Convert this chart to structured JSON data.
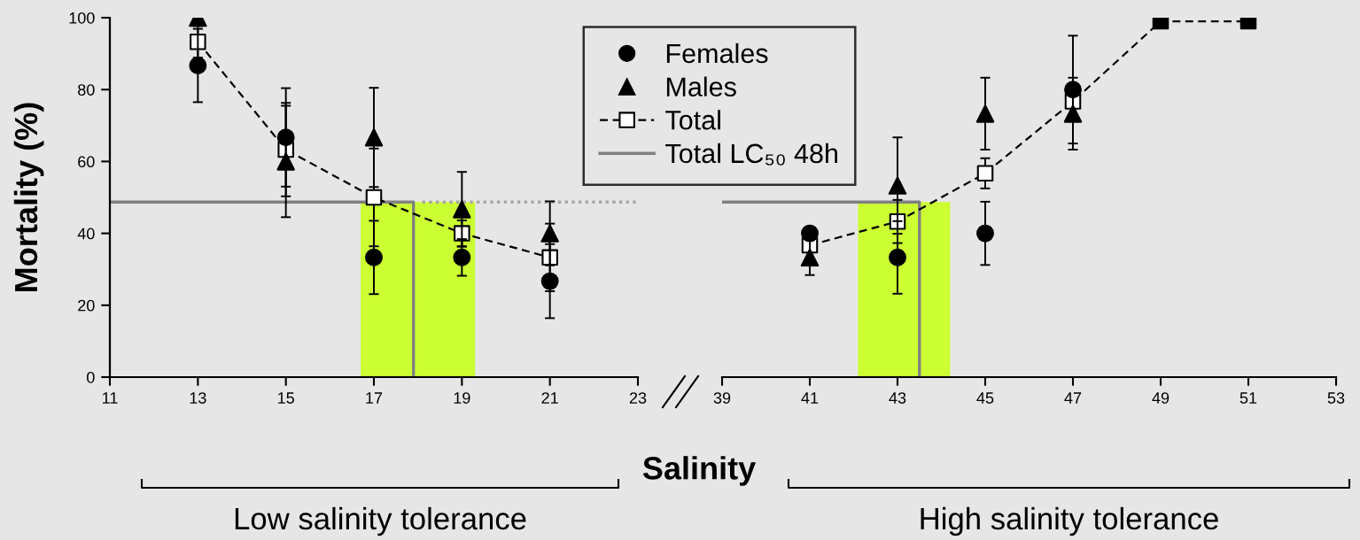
{
  "chart_data": [
    {
      "type": "scatter",
      "xlabel": "Salinity",
      "ylabel": "Mortality (%)",
      "xlim": [
        11,
        23
      ],
      "xticks": [
        11,
        13,
        15,
        17,
        19,
        21,
        23
      ],
      "ylim": [
        0,
        100
      ],
      "yticks": [
        0,
        20,
        40,
        60,
        80,
        100
      ],
      "legend": "top",
      "annotations": [
        "Low salinity tolerance"
      ],
      "series": [
        {
          "type": "area",
          "color": "#ccff33",
          "x": [
            16.7,
            19.3
          ],
          "values": [
            48.7,
            48.7
          ]
        },
        {
          "name": "Females",
          "marker": "circle",
          "color": "#000000",
          "x": [
            13,
            15,
            17,
            19,
            21
          ],
          "values": [
            86.7,
            66.7,
            33.3,
            33.3,
            26.7
          ],
          "errors": [
            10.2,
            13.7,
            10.2,
            5.1,
            10.3
          ]
        },
        {
          "name": "Males",
          "marker": "triangle",
          "color": "#000000",
          "x": [
            13,
            15,
            17,
            19,
            21
          ],
          "values": [
            100,
            60,
            66.7,
            46.7,
            40
          ],
          "errors": [
            null,
            15.5,
            13.8,
            10.4,
            8.9
          ]
        },
        {
          "name": "Total",
          "type": "line",
          "marker": "square",
          "line_style": "dashed",
          "color": "#000000",
          "colors": [
            "#ffffff",
            "#ffffff",
            "#ffffff",
            "#ffffff",
            "#ffffff"
          ],
          "x": [
            13,
            15,
            17,
            19,
            21
          ],
          "values": [
            93.3,
            63.3,
            50,
            40,
            33.3
          ],
          "errors": [
            4.4,
            13,
            13.6,
            3.6,
            9.4
          ]
        },
        {
          "name": "Total LC₅₀ 48h",
          "type": "line",
          "marker": "none",
          "line_style": "solid",
          "color": "#808080",
          "x": [
            11,
            17.9,
            17.9
          ],
          "values": [
            48.7,
            48.7,
            0
          ]
        },
        {
          "type": "line",
          "marker": "none",
          "line_style": "dotted",
          "color": "#a6a6a6",
          "x": [
            18.1,
            23
          ],
          "values": [
            48.7,
            48.7
          ]
        }
      ]
    },
    {
      "type": "scatter",
      "xlim": [
        39,
        53
      ],
      "xticks": [
        39,
        41,
        43,
        45,
        47,
        49,
        51,
        53
      ],
      "ylim": [
        0,
        100
      ],
      "yticks": [
        0,
        20,
        40,
        60,
        80,
        100
      ],
      "tick_labels": "x",
      "annotations": [
        "High salinity tolerance"
      ],
      "series": [
        {
          "type": "area",
          "color": "#ccff33",
          "x": [
            42.1,
            44.2
          ],
          "values": [
            48.7,
            48.7
          ]
        },
        {
          "marker": "circle",
          "color": "#000000",
          "x": [
            41,
            43,
            45,
            47
          ],
          "values": [
            40,
            33.3,
            40,
            80
          ],
          "errors": [
            null,
            10.1,
            8.8,
            15
          ]
        },
        {
          "marker": "triangle",
          "color": "#000000",
          "x": [
            41,
            43,
            45,
            47
          ],
          "values": [
            33.3,
            53.3,
            73.3,
            73.3
          ],
          "errors": [
            4.9,
            13.4,
            10,
            10
          ]
        },
        {
          "type": "line",
          "marker": "square",
          "line_style": "dashed",
          "color": "#000000",
          "colors": [
            "#ffffff",
            "#ffffff",
            "#ffffff",
            "#ffffff",
            "#000000",
            "#000000"
          ],
          "x": [
            41,
            43,
            45,
            47,
            49,
            51
          ],
          "values": [
            36.7,
            43.3,
            56.7,
            76.7,
            99,
            99
          ],
          "errors": [
            null,
            6,
            4.2,
            null,
            null,
            null
          ]
        },
        {
          "type": "line",
          "marker": "none",
          "line_style": "solid",
          "color": "#808080",
          "x": [
            39,
            43.5,
            43.5
          ],
          "values": [
            48.7,
            48.7,
            0
          ]
        }
      ]
    }
  ]
}
